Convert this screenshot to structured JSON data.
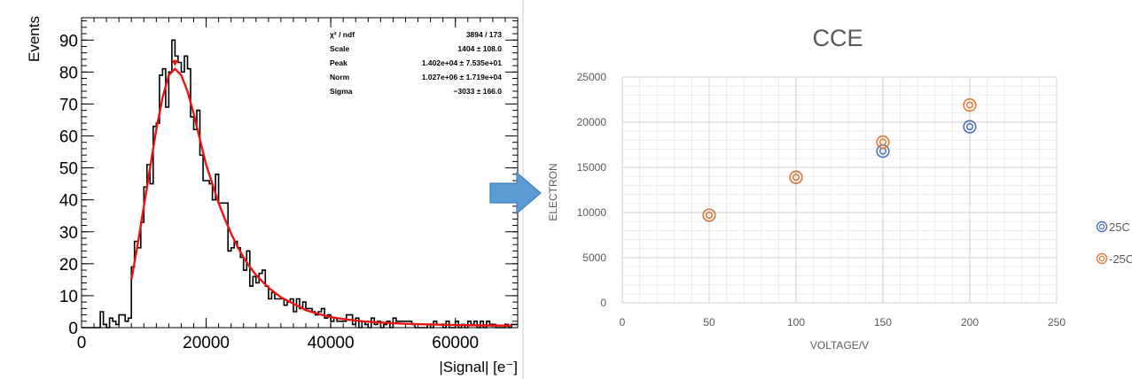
{
  "chart_data": [
    {
      "type": "bar",
      "style": "histogram-with-fit",
      "xlabel": "|Signal| [e⁻]",
      "ylabel": "Events",
      "xlim": [
        0,
        70000
      ],
      "ylim": [
        0,
        97
      ],
      "x_ticks": [
        0,
        20000,
        40000,
        60000
      ],
      "x_tick_labels": [
        "0",
        "20000",
        "40000",
        "60000"
      ],
      "y_ticks": [
        0,
        10,
        20,
        30,
        40,
        50,
        60,
        70,
        80,
        90
      ],
      "y_tick_labels": [
        "0",
        "10",
        "20",
        "30",
        "40",
        "50",
        "60",
        "70",
        "80",
        "90"
      ],
      "bin_width": 500,
      "histogram_color": "#000000",
      "fit_color": "#e8140f",
      "stats_box": [
        {
          "label": "χ² / ndf",
          "value": "3894 / 173"
        },
        {
          "label": "Scale",
          "value": "1404 ± 108.0"
        },
        {
          "label": "Peak",
          "value": "1.402e+04 ± 7.535e+01"
        },
        {
          "label": "Norm",
          "value": "1.027e+06 ± 1.719e+04"
        },
        {
          "label": "Sigma",
          "value": "−3033 ± 166.0"
        }
      ],
      "fit_points": [
        [
          8000,
          15
        ],
        [
          9000,
          26
        ],
        [
          10000,
          38
        ],
        [
          11000,
          50
        ],
        [
          12000,
          62
        ],
        [
          13000,
          72
        ],
        [
          14000,
          79
        ],
        [
          15000,
          81
        ],
        [
          16000,
          79
        ],
        [
          17000,
          74
        ],
        [
          18000,
          67
        ],
        [
          19000,
          59
        ],
        [
          20000,
          51
        ],
        [
          21000,
          45
        ],
        [
          22000,
          39
        ],
        [
          23000,
          34
        ],
        [
          24000,
          29.5
        ],
        [
          25000,
          25.5
        ],
        [
          26000,
          22
        ],
        [
          27000,
          19
        ],
        [
          28000,
          16.5
        ],
        [
          29000,
          14.5
        ],
        [
          30000,
          12.5
        ],
        [
          31000,
          11
        ],
        [
          32000,
          9.5
        ],
        [
          33000,
          8.5
        ],
        [
          34000,
          7.5
        ],
        [
          35000,
          6.5
        ],
        [
          36000,
          5.5
        ],
        [
          38000,
          4.3
        ],
        [
          40000,
          3.3
        ],
        [
          42000,
          2.7
        ],
        [
          45000,
          2
        ],
        [
          48000,
          1.6
        ],
        [
          52000,
          1.2
        ],
        [
          56000,
          1
        ],
        [
          60000,
          0.8
        ],
        [
          65000,
          0.7
        ],
        [
          69000,
          0.6
        ]
      ]
    },
    {
      "type": "scatter",
      "title": "CCE",
      "xlabel": "VOLTAGE/V",
      "ylabel": "ELECTRON",
      "xlim": [
        0,
        250
      ],
      "ylim": [
        0,
        25000
      ],
      "x_ticks": [
        0,
        50,
        100,
        150,
        200,
        250
      ],
      "x_tick_labels": [
        "0",
        "50",
        "100",
        "150",
        "200",
        "250"
      ],
      "y_ticks": [
        0,
        5000,
        10000,
        15000,
        20000,
        25000
      ],
      "y_tick_labels": [
        "0",
        "5000",
        "10000",
        "15000",
        "20000",
        "25000"
      ],
      "grid": true,
      "legend_position": "right",
      "series": [
        {
          "name": "25C",
          "color": "#4a72b0",
          "x": [
            50,
            100,
            150,
            200
          ],
          "y": [
            9700,
            13900,
            16800,
            19500
          ]
        },
        {
          "name": "-25C",
          "color": "#e07b39",
          "x": [
            50,
            100,
            150,
            200
          ],
          "y": [
            9700,
            13900,
            17800,
            21900
          ]
        }
      ]
    }
  ],
  "arrow": {
    "icon": "right-arrow-icon",
    "color": "#5b9bd5"
  }
}
